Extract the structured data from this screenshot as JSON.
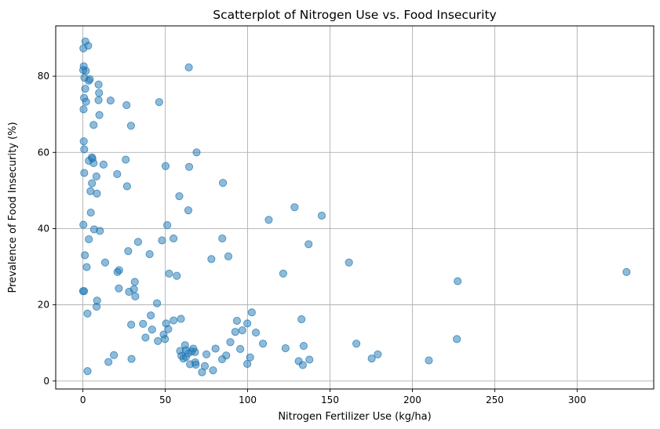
{
  "chart_data": {
    "type": "scatter",
    "title": "Scatterplot of Nitrogen Use vs. Food Insecurity",
    "xlabel": "Nitrogen Fertilizer Use (kg/ha)",
    "ylabel": "Prevalence of Food Insecurity (%)",
    "xlim": [
      -16.5,
      346.5
    ],
    "ylim": [
      -2.1,
      93.2
    ],
    "xticks": [
      0,
      50,
      100,
      150,
      200,
      250,
      300
    ],
    "yticks": [
      0,
      20,
      40,
      60,
      80
    ],
    "grid": true,
    "marker_color": "#1f77b4",
    "marker_alpha": 0.5,
    "points": [
      [
        1.5,
        89.1
      ],
      [
        3.2,
        88.0
      ],
      [
        0.3,
        87.3
      ],
      [
        0.5,
        82.6
      ],
      [
        0.2,
        81.6
      ],
      [
        1.8,
        81.4
      ],
      [
        0.9,
        79.6
      ],
      [
        3.5,
        78.8
      ],
      [
        4.2,
        79.2
      ],
      [
        9.5,
        77.8
      ],
      [
        1.4,
        76.7
      ],
      [
        9.8,
        75.6
      ],
      [
        0.7,
        74.3
      ],
      [
        1.9,
        73.3
      ],
      [
        9.5,
        73.7
      ],
      [
        16.8,
        73.6
      ],
      [
        26.5,
        72.4
      ],
      [
        46.3,
        73.2
      ],
      [
        0.4,
        71.3
      ],
      [
        10.0,
        69.8
      ],
      [
        6.5,
        67.2
      ],
      [
        29.2,
        67.0
      ],
      [
        64.3,
        82.3
      ],
      [
        0.5,
        62.9
      ],
      [
        0.8,
        60.8
      ],
      [
        69.0,
        60.0
      ],
      [
        5.4,
        58.7
      ],
      [
        5.8,
        58.4
      ],
      [
        26.0,
        58.1
      ],
      [
        3.6,
        57.8
      ],
      [
        6.5,
        57.2
      ],
      [
        12.5,
        56.8
      ],
      [
        50.2,
        56.4
      ],
      [
        64.5,
        56.2
      ],
      [
        0.8,
        54.6
      ],
      [
        20.8,
        54.3
      ],
      [
        8.2,
        53.7
      ],
      [
        5.5,
        51.9
      ],
      [
        26.8,
        51.1
      ],
      [
        85.0,
        52.0
      ],
      [
        4.6,
        49.8
      ],
      [
        8.5,
        49.2
      ],
      [
        58.5,
        48.5
      ],
      [
        64.0,
        44.8
      ],
      [
        4.8,
        44.2
      ],
      [
        128.5,
        45.6
      ],
      [
        145.0,
        43.4
      ],
      [
        112.8,
        42.3
      ],
      [
        0.3,
        41.0
      ],
      [
        51.2,
        40.9
      ],
      [
        6.8,
        39.8
      ],
      [
        10.3,
        39.4
      ],
      [
        3.6,
        37.2
      ],
      [
        55.0,
        37.4
      ],
      [
        84.6,
        37.4
      ],
      [
        33.5,
        36.5
      ],
      [
        48.0,
        36.9
      ],
      [
        137.0,
        35.9
      ],
      [
        27.5,
        34.1
      ],
      [
        40.5,
        33.3
      ],
      [
        1.2,
        33.0
      ],
      [
        88.3,
        32.7
      ],
      [
        78.0,
        32.0
      ],
      [
        13.5,
        31.1
      ],
      [
        161.5,
        31.1
      ],
      [
        2.3,
        29.9
      ],
      [
        22.0,
        29.1
      ],
      [
        21.0,
        28.6
      ],
      [
        52.3,
        28.2
      ],
      [
        121.6,
        28.2
      ],
      [
        57.0,
        27.6
      ],
      [
        330.0,
        28.6
      ],
      [
        31.5,
        26.0
      ],
      [
        227.5,
        26.2
      ],
      [
        21.8,
        24.3
      ],
      [
        31.0,
        24.1
      ],
      [
        28.0,
        23.4
      ],
      [
        0.1,
        23.6
      ],
      [
        0.7,
        23.6
      ],
      [
        31.8,
        22.2
      ],
      [
        8.6,
        21.1
      ],
      [
        45.0,
        20.4
      ],
      [
        8.3,
        19.5
      ],
      [
        102.5,
        18.0
      ],
      [
        2.8,
        17.7
      ],
      [
        41.2,
        17.2
      ],
      [
        59.5,
        16.3
      ],
      [
        55.0,
        15.9
      ],
      [
        93.5,
        15.8
      ],
      [
        132.7,
        16.2
      ],
      [
        50.5,
        15.1
      ],
      [
        99.8,
        15.1
      ],
      [
        29.3,
        14.8
      ],
      [
        36.5,
        15.0
      ],
      [
        42.0,
        13.5
      ],
      [
        51.8,
        13.6
      ],
      [
        92.5,
        12.9
      ],
      [
        96.8,
        13.3
      ],
      [
        105.0,
        12.7
      ],
      [
        49.0,
        12.2
      ],
      [
        38.0,
        11.4
      ],
      [
        49.8,
        11.0
      ],
      [
        227.0,
        11.0
      ],
      [
        45.5,
        10.5
      ],
      [
        89.5,
        10.2
      ],
      [
        109.3,
        9.8
      ],
      [
        166.0,
        9.8
      ],
      [
        62.0,
        9.4
      ],
      [
        67.0,
        8.5
      ],
      [
        80.5,
        8.5
      ],
      [
        95.5,
        8.4
      ],
      [
        123.0,
        8.6
      ],
      [
        134.0,
        9.2
      ],
      [
        59.0,
        7.9
      ],
      [
        64.0,
        7.3
      ],
      [
        62.5,
        8.1
      ],
      [
        66.0,
        7.8
      ],
      [
        68.0,
        7.6
      ],
      [
        75.0,
        7.0
      ],
      [
        101.5,
        6.2
      ],
      [
        179.0,
        7.0
      ],
      [
        18.8,
        6.8
      ],
      [
        59.8,
        6.6
      ],
      [
        61.0,
        5.9
      ],
      [
        87.0,
        6.7
      ],
      [
        29.5,
        5.8
      ],
      [
        62.5,
        6.3
      ],
      [
        84.5,
        5.7
      ],
      [
        131.0,
        5.2
      ],
      [
        137.5,
        5.6
      ],
      [
        175.3,
        5.9
      ],
      [
        210.0,
        5.4
      ],
      [
        15.5,
        5.0
      ],
      [
        65.0,
        4.4
      ],
      [
        68.2,
        4.9
      ],
      [
        68.5,
        4.3
      ],
      [
        99.8,
        4.5
      ],
      [
        133.5,
        4.2
      ],
      [
        2.8,
        2.6
      ],
      [
        74.0,
        3.9
      ],
      [
        72.3,
        2.3
      ],
      [
        79.0,
        2.8
      ]
    ]
  }
}
